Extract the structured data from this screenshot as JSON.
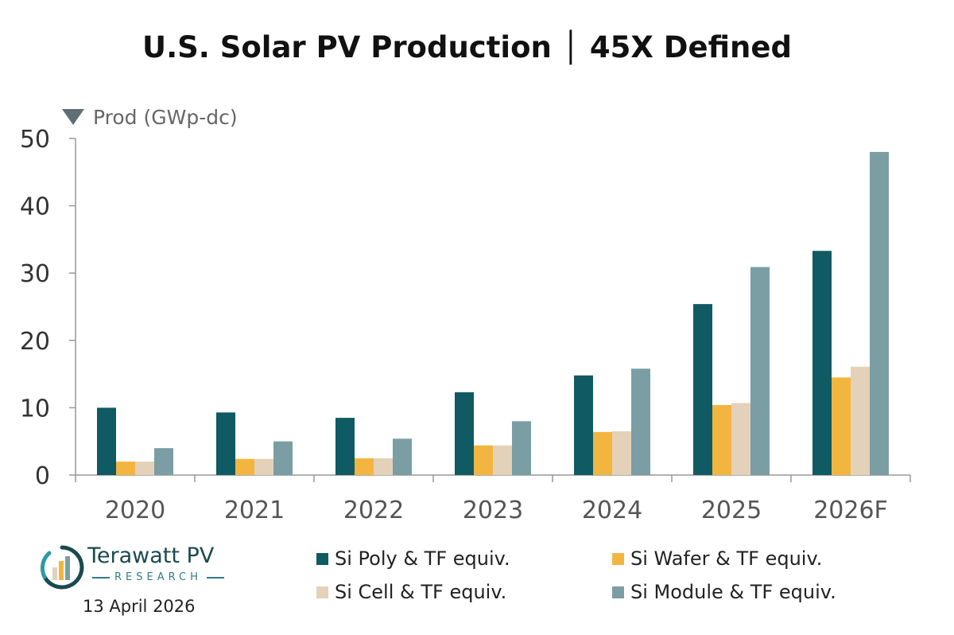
{
  "chart_data": {
    "type": "bar",
    "title": "U.S. Solar PV Production │ 45X Defined",
    "ylabel": "Prod (GWp-dc)",
    "xlabel": "",
    "ylim": [
      0,
      50
    ],
    "yticks": [
      0,
      10,
      20,
      30,
      40,
      50
    ],
    "grid": false,
    "legend_position": "bottom",
    "categories": [
      "2020",
      "2021",
      "2022",
      "2023",
      "2024",
      "2025",
      "2026F"
    ],
    "series": [
      {
        "name": "Si Poly & TF equiv.",
        "color": "#0f5a63",
        "values": [
          10.0,
          9.3,
          8.5,
          12.3,
          14.8,
          25.4,
          33.3
        ]
      },
      {
        "name": "Si Wafer & TF equiv.",
        "color": "#f2b640",
        "values": [
          2.0,
          2.4,
          2.5,
          4.4,
          6.4,
          10.4,
          14.5
        ]
      },
      {
        "name": "Si Cell & TF equiv.",
        "color": "#e4d1b9",
        "values": [
          2.0,
          2.4,
          2.5,
          4.4,
          6.5,
          10.7,
          16.1
        ]
      },
      {
        "name": "Si Module & TF equiv.",
        "color": "#7a9ea4",
        "values": [
          4.0,
          5.0,
          5.4,
          8.0,
          15.8,
          30.9,
          48.0
        ]
      }
    ]
  },
  "branding": {
    "logo_name": "Terawatt PV",
    "logo_sub": "RESEARCH",
    "logo_icon": "bar-chart-circle-icon",
    "date": "13 April 2026"
  }
}
